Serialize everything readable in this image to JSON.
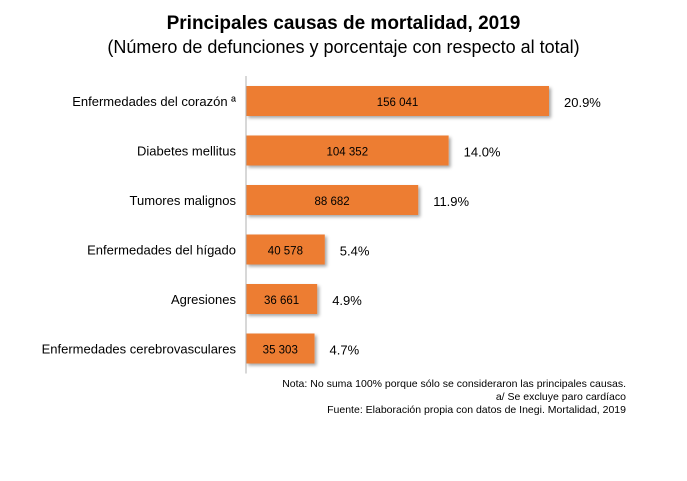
{
  "chart_data": {
    "type": "bar",
    "orientation": "horizontal",
    "title": "Principales causas de mortalidad, 2019",
    "subtitle": "(Número de defunciones y porcentaje con respecto al total)",
    "categories": [
      "Enfermedades del corazón ª",
      "Diabetes mellitus",
      "Tumores malignos",
      "Enfermedades del hígado",
      "Agresiones",
      "Enfermedades cerebrovasculares"
    ],
    "values": [
      156041,
      104352,
      88682,
      40578,
      36661,
      35303
    ],
    "value_labels": [
      "156 041",
      "104 352",
      "88 682",
      "40 578",
      "36 661",
      "35 303"
    ],
    "percent_labels": [
      "20.9%",
      "14.0%",
      "11.9%",
      "5.4%",
      "4.9%",
      "4.7%"
    ],
    "xlim": [
      0,
      156041
    ],
    "grid": false,
    "bar_color": "#ED7D31"
  },
  "notes": {
    "line1": "Nota: No suma 100% porque sólo se consideraron las principales causas.",
    "line2": "a/ Se excluye paro cardíaco",
    "line3": "Fuente: Elaboración propia con datos de Inegi. Mortalidad, 2019"
  }
}
